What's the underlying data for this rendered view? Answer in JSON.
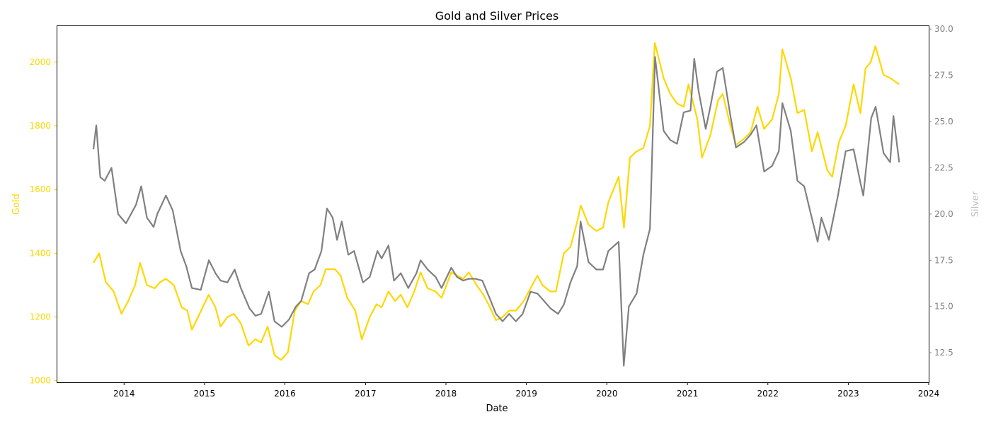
{
  "chart_data": {
    "type": "line",
    "title": "Gold and Silver Prices",
    "xlabel": "Date",
    "ylabel_left": "Gold",
    "ylabel_right": "Silver",
    "x_ticks": [
      "2014",
      "2015",
      "2016",
      "2017",
      "2018",
      "2019",
      "2020",
      "2021",
      "2022",
      "2023",
      "2024"
    ],
    "x_range": [
      "2013-03-01",
      "2024-01-01"
    ],
    "ylim_left": [
      995,
      2115
    ],
    "ylim_right": [
      10.9,
      30.2
    ],
    "y_ticks_left": [
      "1000",
      "1200",
      "1400",
      "1600",
      "1800",
      "2000"
    ],
    "y_ticks_right": [
      "12.5",
      "15.0",
      "17.5",
      "20.0",
      "22.5",
      "25.0",
      "27.5",
      "30.0"
    ],
    "grid": false,
    "legend": "none",
    "colors": {
      "gold": "#FFD700",
      "silver": "#808080",
      "right_label": "#C0C0C0",
      "right_ticks": "#808080"
    },
    "series": [
      {
        "axis": "left",
        "x": [
          "2013-08-15",
          "2013-09-10",
          "2013-10-10",
          "2013-11-15",
          "2013-12-20",
          "2014-01-20",
          "2014-02-20",
          "2014-03-15",
          "2014-04-15",
          "2014-05-20",
          "2014-06-15",
          "2014-07-10",
          "2014-08-15",
          "2014-09-20",
          "2014-10-15",
          "2014-11-05",
          "2014-12-10",
          "2015-01-20",
          "2015-02-20",
          "2015-03-15",
          "2015-04-15",
          "2015-05-15",
          "2015-06-15",
          "2015-07-20",
          "2015-08-20",
          "2015-09-15",
          "2015-10-15",
          "2015-11-15",
          "2015-12-15",
          "2016-01-15",
          "2016-02-15",
          "2016-03-15",
          "2016-04-15",
          "2016-05-10",
          "2016-06-10",
          "2016-07-05",
          "2016-08-15",
          "2016-09-10",
          "2016-10-10",
          "2016-11-15",
          "2016-12-15",
          "2017-01-20",
          "2017-02-20",
          "2017-03-15",
          "2017-04-15",
          "2017-05-15",
          "2017-06-10",
          "2017-07-10",
          "2017-08-10",
          "2017-09-08",
          "2017-10-10",
          "2017-11-15",
          "2017-12-12",
          "2018-01-25",
          "2018-02-20",
          "2018-03-20",
          "2018-04-15",
          "2018-05-20",
          "2018-06-20",
          "2018-07-20",
          "2018-08-16",
          "2018-09-15",
          "2018-10-15",
          "2018-11-15",
          "2018-12-20",
          "2019-01-20",
          "2019-02-20",
          "2019-03-15",
          "2019-04-20",
          "2019-05-15",
          "2019-06-20",
          "2019-07-20",
          "2019-08-20",
          "2019-09-05",
          "2019-10-10",
          "2019-11-15",
          "2019-12-15",
          "2020-01-08",
          "2020-02-24",
          "2020-03-19",
          "2020-04-15",
          "2020-05-15",
          "2020-06-15",
          "2020-07-15",
          "2020-08-06",
          "2020-09-15",
          "2020-10-15",
          "2020-11-15",
          "2020-12-15",
          "2021-01-06",
          "2021-02-15",
          "2021-03-08",
          "2021-04-15",
          "2021-05-20",
          "2021-06-10",
          "2021-07-15",
          "2021-08-09",
          "2021-09-15",
          "2021-10-15",
          "2021-11-15",
          "2021-12-15",
          "2022-01-20",
          "2022-02-20",
          "2022-03-08",
          "2022-04-15",
          "2022-05-15",
          "2022-06-15",
          "2022-07-20",
          "2022-08-15",
          "2022-09-28",
          "2022-10-20",
          "2022-11-20",
          "2022-12-20",
          "2023-01-25",
          "2023-02-25",
          "2023-03-20",
          "2023-04-13",
          "2023-05-04",
          "2023-06-10",
          "2023-07-10",
          "2023-08-20"
        ],
        "values": [
          1370,
          1400,
          1310,
          1280,
          1210,
          1250,
          1300,
          1370,
          1300,
          1290,
          1310,
          1320,
          1300,
          1230,
          1220,
          1160,
          1210,
          1270,
          1230,
          1170,
          1200,
          1210,
          1180,
          1110,
          1130,
          1120,
          1170,
          1080,
          1065,
          1090,
          1220,
          1250,
          1240,
          1280,
          1300,
          1350,
          1350,
          1330,
          1260,
          1220,
          1130,
          1200,
          1240,
          1230,
          1280,
          1250,
          1270,
          1230,
          1280,
          1340,
          1290,
          1280,
          1260,
          1340,
          1330,
          1320,
          1340,
          1300,
          1270,
          1230,
          1190,
          1200,
          1220,
          1220,
          1250,
          1290,
          1330,
          1300,
          1280,
          1280,
          1400,
          1420,
          1500,
          1550,
          1490,
          1470,
          1480,
          1560,
          1640,
          1480,
          1700,
          1720,
          1730,
          1800,
          2060,
          1950,
          1900,
          1870,
          1860,
          1930,
          1820,
          1700,
          1770,
          1880,
          1900,
          1800,
          1740,
          1760,
          1780,
          1860,
          1790,
          1820,
          1900,
          2040,
          1950,
          1840,
          1850,
          1720,
          1780,
          1660,
          1640,
          1750,
          1800,
          1930,
          1840,
          1980,
          2000,
          2050,
          1960,
          1950,
          1930
        ]
      },
      {
        "axis": "right",
        "x": [
          "2013-08-15",
          "2013-08-28",
          "2013-09-15",
          "2013-10-05",
          "2013-11-05",
          "2013-12-05",
          "2014-01-10",
          "2014-02-24",
          "2014-03-20",
          "2014-04-15",
          "2014-05-15",
          "2014-06-01",
          "2014-07-10",
          "2014-08-10",
          "2014-09-15",
          "2014-10-10",
          "2014-11-05",
          "2014-12-15",
          "2015-01-21",
          "2015-02-20",
          "2015-03-15",
          "2015-04-15",
          "2015-05-18",
          "2015-06-15",
          "2015-07-24",
          "2015-08-20",
          "2015-09-15",
          "2015-10-20",
          "2015-11-15",
          "2015-12-18",
          "2016-01-20",
          "2016-02-20",
          "2016-03-15",
          "2016-04-20",
          "2016-05-15",
          "2016-06-15",
          "2016-07-10",
          "2016-08-05",
          "2016-08-25",
          "2016-09-15",
          "2016-10-15",
          "2016-11-10",
          "2016-12-20",
          "2017-01-20",
          "2017-02-24",
          "2017-03-15",
          "2017-04-15",
          "2017-05-10",
          "2017-06-10",
          "2017-07-14",
          "2017-08-20",
          "2017-09-08",
          "2017-10-10",
          "2017-11-15",
          "2017-12-12",
          "2018-01-25",
          "2018-02-20",
          "2018-03-20",
          "2018-04-15",
          "2018-05-15",
          "2018-06-15",
          "2018-07-20",
          "2018-08-16",
          "2018-09-15",
          "2018-10-15",
          "2018-11-14",
          "2018-12-15",
          "2019-01-20",
          "2019-02-20",
          "2019-03-15",
          "2019-04-20",
          "2019-05-25",
          "2019-06-20",
          "2019-07-20",
          "2019-08-20",
          "2019-09-04",
          "2019-10-10",
          "2019-11-15",
          "2019-12-15",
          "2020-01-08",
          "2020-02-24",
          "2020-03-18",
          "2020-04-10",
          "2020-05-15",
          "2020-06-15",
          "2020-07-15",
          "2020-08-07",
          "2020-09-15",
          "2020-10-15",
          "2020-11-15",
          "2020-12-15",
          "2021-01-15",
          "2021-02-01",
          "2021-02-20",
          "2021-03-25",
          "2021-04-15",
          "2021-05-15",
          "2021-06-10",
          "2021-07-15",
          "2021-08-09",
          "2021-09-15",
          "2021-10-15",
          "2021-11-10",
          "2021-12-15",
          "2022-01-20",
          "2022-02-20",
          "2022-03-08",
          "2022-04-15",
          "2022-05-15",
          "2022-06-15",
          "2022-07-15",
          "2022-08-15",
          "2022-09-01",
          "2022-10-05",
          "2022-11-15",
          "2022-12-20",
          "2023-01-25",
          "2023-02-25",
          "2023-03-10",
          "2023-04-15",
          "2023-05-05",
          "2023-06-10",
          "2023-07-10",
          "2023-07-25",
          "2023-08-20"
        ],
        "values": [
          23.5,
          24.8,
          22.0,
          21.8,
          22.5,
          20.0,
          19.5,
          20.5,
          21.5,
          19.8,
          19.3,
          20.0,
          21.0,
          20.2,
          18.0,
          17.2,
          16.0,
          15.9,
          17.5,
          16.8,
          16.4,
          16.3,
          17.0,
          16.0,
          14.9,
          14.5,
          14.6,
          15.8,
          14.2,
          13.9,
          14.3,
          15.0,
          15.3,
          16.8,
          17.0,
          18.0,
          20.3,
          19.8,
          18.6,
          19.6,
          17.8,
          18.0,
          16.3,
          16.6,
          18.0,
          17.6,
          18.3,
          16.4,
          16.8,
          16.0,
          16.8,
          17.5,
          17.0,
          16.6,
          16.0,
          17.1,
          16.6,
          16.4,
          16.5,
          16.5,
          16.4,
          15.4,
          14.6,
          14.2,
          14.6,
          14.2,
          14.6,
          15.8,
          15.7,
          15.4,
          14.9,
          14.6,
          15.1,
          16.3,
          17.2,
          19.6,
          17.4,
          17.0,
          17.0,
          18.0,
          18.5,
          11.8,
          15.0,
          15.7,
          17.8,
          19.2,
          28.5,
          24.5,
          24.0,
          23.8,
          25.5,
          25.6,
          28.4,
          26.7,
          24.6,
          25.8,
          27.7,
          27.9,
          25.3,
          23.6,
          23.9,
          24.3,
          24.8,
          22.3,
          22.6,
          23.4,
          26.0,
          24.5,
          21.8,
          21.5,
          20.0,
          18.5,
          19.8,
          18.6,
          21.0,
          23.4,
          23.5,
          21.7,
          21.0,
          25.2,
          25.8,
          23.3,
          22.8,
          25.3,
          22.8
        ]
      }
    ]
  }
}
